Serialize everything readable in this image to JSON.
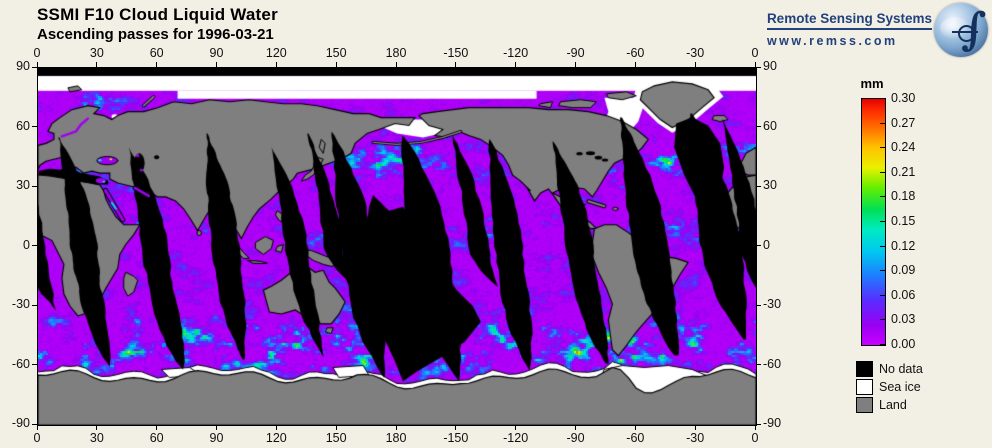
{
  "header": {
    "title": "SSMI F10 Cloud Liquid Water",
    "subtitle": "Ascending passes for 1996-03-21"
  },
  "logo": {
    "org": "Remote Sensing Systems",
    "url": "www.remss.com",
    "globe_icon": "earth-globe-with-integral"
  },
  "axes": {
    "lon_labels": [
      "0",
      "30",
      "60",
      "90",
      "120",
      "150",
      "180",
      "-150",
      "-120",
      "-90",
      "-60",
      "-30",
      "0"
    ],
    "lat_labels": [
      "90",
      "60",
      "30",
      "0",
      "-30",
      "-60",
      "-90"
    ]
  },
  "colorbar": {
    "unit": "mm",
    "labels": [
      "0.30",
      "0.27",
      "0.24",
      "0.21",
      "0.18",
      "0.15",
      "0.12",
      "0.09",
      "0.06",
      "0.03",
      "0.00"
    ]
  },
  "legend": {
    "items": [
      {
        "label": "No data",
        "color": "#000000"
      },
      {
        "label": "Sea ice",
        "color": "#FFFFFF"
      },
      {
        "label": "Land",
        "color": "#7F7F7F"
      }
    ]
  },
  "colors": {
    "background": "#F2EFE4",
    "land": "#7F7F7F",
    "coastline": "#000000",
    "sea_ice": "#FFFFFF",
    "no_data": "#000000",
    "logo_navy": "#23417C",
    "cmap": [
      {
        "t": 0.0,
        "c": "#C800FF"
      },
      {
        "t": 0.08,
        "c": "#9900F2"
      },
      {
        "t": 0.18,
        "c": "#5A2CFF"
      },
      {
        "t": 0.28,
        "c": "#1E7CFF"
      },
      {
        "t": 0.38,
        "c": "#00C8F0"
      },
      {
        "t": 0.47,
        "c": "#00EBC0"
      },
      {
        "t": 0.55,
        "c": "#00E055"
      },
      {
        "t": 0.64,
        "c": "#66EE00"
      },
      {
        "t": 0.72,
        "c": "#E8F000"
      },
      {
        "t": 0.8,
        "c": "#FFC400"
      },
      {
        "t": 0.88,
        "c": "#FF7100"
      },
      {
        "t": 0.95,
        "c": "#FF2E00"
      },
      {
        "t": 1.0,
        "c": "#E60000"
      }
    ]
  },
  "chart_data": {
    "type": "heatmap",
    "title": "SSMI F10 Cloud Liquid Water",
    "subtitle": "Ascending passes for 1996-03-21",
    "variable": "cloud liquid water",
    "unit": "mm",
    "projection": "equirectangular world map",
    "colorbar_range": [
      0.0,
      0.3
    ],
    "colorbar_ticks": [
      0.3,
      0.27,
      0.24,
      0.21,
      0.18,
      0.15,
      0.12,
      0.09,
      0.06,
      0.03,
      0.0
    ],
    "x_axis": {
      "range": [
        0,
        360
      ],
      "tick_step_deg": 30,
      "tick_labels": [
        "0",
        "30",
        "60",
        "90",
        "120",
        "150",
        "180",
        "-150",
        "-120",
        "-90",
        "-60",
        "-30",
        "0"
      ]
    },
    "y_axis": {
      "range": [
        -90,
        90
      ],
      "tick_step_deg": 30,
      "tick_labels": [
        "90",
        "60",
        "30",
        "0",
        "-30",
        "-60",
        "-90"
      ]
    },
    "special_categories": [
      "No data",
      "Sea ice",
      "Land"
    ],
    "legend_position": "right",
    "grid": false,
    "description": "Ocean background near 0.00 mm (violet) with cyan/green/yellow/red cloud streaks in storm tracks; black spindle-shaped no-data gaps between ascending orbit swaths; gray continents; white sea ice at high latitudes."
  }
}
